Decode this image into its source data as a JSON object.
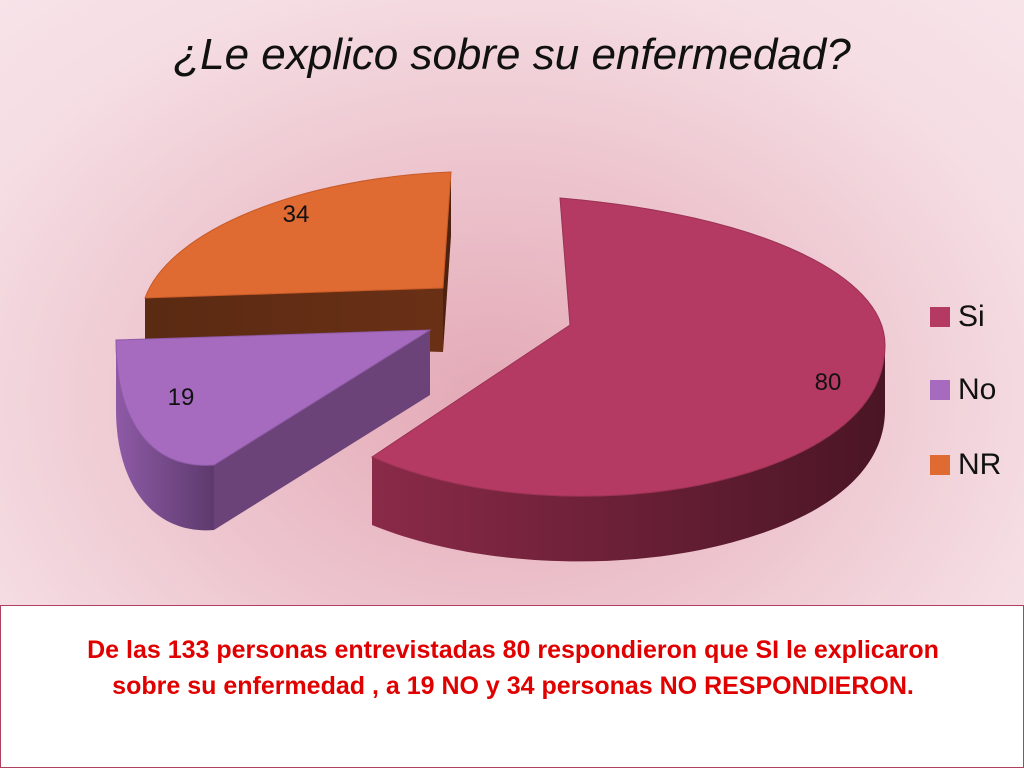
{
  "title": "¿Le explico sobre su enfermedad?",
  "chart_data": {
    "type": "pie",
    "categories": [
      "Si",
      "No",
      "NR"
    ],
    "values": [
      80,
      19,
      34
    ],
    "data_labels": [
      "80",
      "19",
      "34"
    ],
    "title": "¿Le explico sobre su enfermedad?",
    "legend": "right",
    "three_d": true,
    "exploded": true
  },
  "legend": [
    {
      "label": "Si",
      "color": "#b43a63"
    },
    {
      "label": "No",
      "color": "#a66bbf"
    },
    {
      "label": "NR",
      "color": "#df6a32"
    }
  ],
  "colors": {
    "si_side": "#6e1f36",
    "no_side": "#6b4378",
    "nr_side": "#5e2a14",
    "caption_text": "#e00000",
    "caption_border": "#b04060"
  },
  "caption": "De  las 133 personas entrevistadas 80 respondieron que SI le explicaron sobre su enfermedad ,  a 19 NO y 34 personas NO RESPONDIERON."
}
